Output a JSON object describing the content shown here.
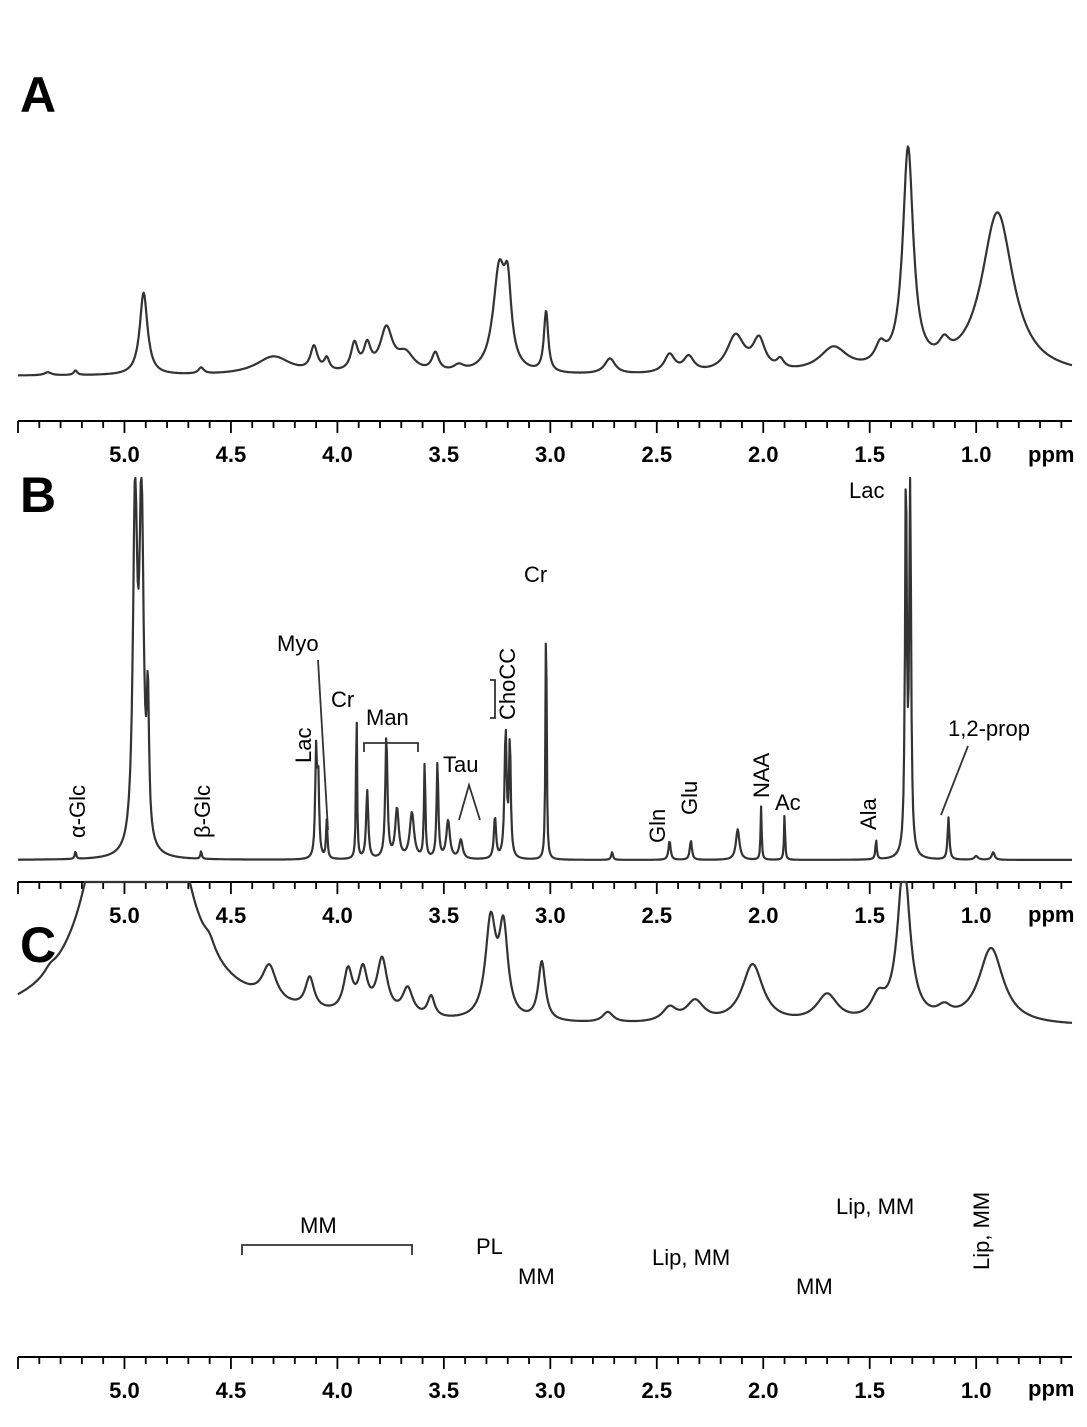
{
  "chart_data": [
    {
      "panel": "A",
      "type": "line",
      "xlabel": "ppm",
      "xlim": [
        5.5,
        0.55
      ],
      "x_reversed": true,
      "x_ticks": [
        "5.0",
        "4.5",
        "4.0",
        "3.5",
        "3.0",
        "2.5",
        "2.0",
        "1.5",
        "1.0"
      ],
      "x_tick_values": [
        5.0,
        4.5,
        4.0,
        3.5,
        3.0,
        2.5,
        2.0,
        1.5,
        1.0
      ],
      "ylim": [
        0,
        1
      ],
      "baseline": 0.03,
      "peaks": [
        {
          "x": 5.36,
          "h": 0.01,
          "w": 0.02
        },
        {
          "x": 5.23,
          "h": 0.015,
          "w": 0.01
        },
        {
          "x": 4.91,
          "h": 0.27,
          "w": 0.022
        },
        {
          "x": 4.64,
          "h": 0.02,
          "w": 0.015
        },
        {
          "x": 4.3,
          "h": 0.06,
          "w": 0.1
        },
        {
          "x": 4.11,
          "h": 0.08,
          "w": 0.02
        },
        {
          "x": 4.05,
          "h": 0.04,
          "w": 0.015
        },
        {
          "x": 3.92,
          "h": 0.09,
          "w": 0.02
        },
        {
          "x": 3.86,
          "h": 0.08,
          "w": 0.02
        },
        {
          "x": 3.77,
          "h": 0.14,
          "w": 0.035
        },
        {
          "x": 3.68,
          "h": 0.06,
          "w": 0.05
        },
        {
          "x": 3.54,
          "h": 0.06,
          "w": 0.02
        },
        {
          "x": 3.43,
          "h": 0.02,
          "w": 0.03
        },
        {
          "x": 3.24,
          "h": 0.33,
          "w": 0.035
        },
        {
          "x": 3.2,
          "h": 0.22,
          "w": 0.02
        },
        {
          "x": 3.02,
          "h": 0.2,
          "w": 0.012
        },
        {
          "x": 2.72,
          "h": 0.05,
          "w": 0.03
        },
        {
          "x": 2.44,
          "h": 0.06,
          "w": 0.03
        },
        {
          "x": 2.35,
          "h": 0.05,
          "w": 0.03
        },
        {
          "x": 2.13,
          "h": 0.12,
          "w": 0.05
        },
        {
          "x": 2.02,
          "h": 0.1,
          "w": 0.035
        },
        {
          "x": 1.92,
          "h": 0.03,
          "w": 0.02
        },
        {
          "x": 1.67,
          "h": 0.08,
          "w": 0.08
        },
        {
          "x": 1.45,
          "h": 0.06,
          "w": 0.03
        },
        {
          "x": 1.32,
          "h": 0.72,
          "w": 0.03
        },
        {
          "x": 1.15,
          "h": 0.05,
          "w": 0.03
        },
        {
          "x": 0.9,
          "h": 0.53,
          "w": 0.09
        }
      ],
      "annotations": []
    },
    {
      "panel": "B",
      "type": "line",
      "xlabel": "ppm",
      "xlim": [
        5.5,
        0.55
      ],
      "x_reversed": true,
      "x_ticks": [
        "5.0",
        "4.5",
        "4.0",
        "3.5",
        "3.0",
        "2.5",
        "2.0",
        "1.5",
        "1.0"
      ],
      "x_tick_values": [
        5.0,
        4.5,
        4.0,
        3.5,
        3.0,
        2.5,
        2.0,
        1.5,
        1.0
      ],
      "ylim": [
        0,
        1
      ],
      "baseline": 0.0,
      "peaks": [
        {
          "x": 5.23,
          "h": 0.02,
          "w": 0.004
        },
        {
          "x": 4.95,
          "h": 0.9,
          "w": 0.012
        },
        {
          "x": 4.92,
          "h": 0.9,
          "w": 0.012
        },
        {
          "x": 4.89,
          "h": 0.35,
          "w": 0.006
        },
        {
          "x": 4.64,
          "h": 0.02,
          "w": 0.004
        },
        {
          "x": 4.1,
          "h": 0.27,
          "w": 0.005
        },
        {
          "x": 4.09,
          "h": 0.2,
          "w": 0.005
        },
        {
          "x": 4.05,
          "h": 0.1,
          "w": 0.004
        },
        {
          "x": 3.91,
          "h": 0.4,
          "w": 0.003
        },
        {
          "x": 3.86,
          "h": 0.18,
          "w": 0.006
        },
        {
          "x": 3.77,
          "h": 0.32,
          "w": 0.006
        },
        {
          "x": 3.72,
          "h": 0.13,
          "w": 0.01
        },
        {
          "x": 3.65,
          "h": 0.12,
          "w": 0.012
        },
        {
          "x": 3.59,
          "h": 0.25,
          "w": 0.004
        },
        {
          "x": 3.53,
          "h": 0.25,
          "w": 0.005
        },
        {
          "x": 3.48,
          "h": 0.1,
          "w": 0.01
        },
        {
          "x": 3.42,
          "h": 0.05,
          "w": 0.01
        },
        {
          "x": 3.26,
          "h": 0.11,
          "w": 0.006
        },
        {
          "x": 3.21,
          "h": 0.33,
          "w": 0.006
        },
        {
          "x": 3.19,
          "h": 0.3,
          "w": 0.005
        },
        {
          "x": 3.02,
          "h": 0.7,
          "w": 0.003
        },
        {
          "x": 2.71,
          "h": 0.02,
          "w": 0.005
        },
        {
          "x": 2.44,
          "h": 0.05,
          "w": 0.006
        },
        {
          "x": 2.34,
          "h": 0.05,
          "w": 0.006
        },
        {
          "x": 2.12,
          "h": 0.08,
          "w": 0.01
        },
        {
          "x": 2.01,
          "h": 0.14,
          "w": 0.003
        },
        {
          "x": 1.9,
          "h": 0.12,
          "w": 0.003
        },
        {
          "x": 1.47,
          "h": 0.05,
          "w": 0.004
        },
        {
          "x": 1.33,
          "h": 0.99,
          "w": 0.005
        },
        {
          "x": 1.31,
          "h": 0.99,
          "w": 0.005
        },
        {
          "x": 1.13,
          "h": 0.11,
          "w": 0.005
        },
        {
          "x": 1.0,
          "h": 0.01,
          "w": 0.01
        },
        {
          "x": 0.92,
          "h": 0.02,
          "w": 0.008
        }
      ],
      "annotations": [
        {
          "text": "α-Glc",
          "x": 5.23,
          "rotated": true
        },
        {
          "text": "β-Glc",
          "x": 4.64,
          "rotated": true
        },
        {
          "text": "Lac",
          "x": 4.1,
          "rotated": true
        },
        {
          "text": "Myo",
          "x": 4.05
        },
        {
          "text": "Cr",
          "x": 3.92
        },
        {
          "text": "Man",
          "x": 3.72
        },
        {
          "text": "Tau",
          "x": 3.35
        },
        {
          "text": "ChoCC",
          "x": 3.2,
          "rotated": true
        },
        {
          "text": "Cr",
          "x": 3.02
        },
        {
          "text": "Gln",
          "x": 2.44,
          "rotated": true
        },
        {
          "text": "Glu",
          "x": 2.34,
          "rotated": true
        },
        {
          "text": "NAA",
          "x": 2.01,
          "rotated": true
        },
        {
          "text": "Ac",
          "x": 1.9
        },
        {
          "text": "Ala",
          "x": 1.47,
          "rotated": true
        },
        {
          "text": "Lac",
          "x": 1.32
        },
        {
          "text": "1,2-prop",
          "x": 1.13
        }
      ]
    },
    {
      "panel": "C",
      "type": "line",
      "xlabel": "ppm",
      "xlim": [
        5.5,
        0.55
      ],
      "x_reversed": true,
      "x_ticks": [
        "5.0",
        "4.5",
        "4.0",
        "3.5",
        "3.0",
        "2.5",
        "2.0",
        "1.5",
        "1.0"
      ],
      "x_tick_values": [
        5.0,
        4.5,
        4.0,
        3.5,
        3.0,
        2.5,
        2.0,
        1.5,
        1.0
      ],
      "ylim": [
        0,
        1
      ],
      "baseline": 0.01,
      "peaks": [
        {
          "x": 5.35,
          "h": 0.015,
          "w": 0.03
        },
        {
          "x": 4.94,
          "h": 2.5,
          "w": 0.11
        },
        {
          "x": 4.6,
          "h": 0.03,
          "w": 0.03
        },
        {
          "x": 4.32,
          "h": 0.1,
          "w": 0.04
        },
        {
          "x": 4.13,
          "h": 0.09,
          "w": 0.025
        },
        {
          "x": 3.95,
          "h": 0.12,
          "w": 0.025
        },
        {
          "x": 3.88,
          "h": 0.12,
          "w": 0.025
        },
        {
          "x": 3.79,
          "h": 0.16,
          "w": 0.03
        },
        {
          "x": 3.67,
          "h": 0.08,
          "w": 0.03
        },
        {
          "x": 3.56,
          "h": 0.06,
          "w": 0.02
        },
        {
          "x": 3.28,
          "h": 0.28,
          "w": 0.03
        },
        {
          "x": 3.22,
          "h": 0.25,
          "w": 0.025
        },
        {
          "x": 3.04,
          "h": 0.17,
          "w": 0.02
        },
        {
          "x": 2.73,
          "h": 0.03,
          "w": 0.03
        },
        {
          "x": 2.44,
          "h": 0.04,
          "w": 0.04
        },
        {
          "x": 2.32,
          "h": 0.06,
          "w": 0.05
        },
        {
          "x": 2.05,
          "h": 0.17,
          "w": 0.06
        },
        {
          "x": 1.7,
          "h": 0.08,
          "w": 0.06
        },
        {
          "x": 1.46,
          "h": 0.06,
          "w": 0.04
        },
        {
          "x": 1.34,
          "h": 0.46,
          "w": 0.035
        },
        {
          "x": 1.15,
          "h": 0.03,
          "w": 0.04
        },
        {
          "x": 0.93,
          "h": 0.22,
          "w": 0.07
        }
      ],
      "annotations": [
        {
          "text": "MM",
          "x": 4.05
        },
        {
          "text": "PL",
          "x": 3.24
        },
        {
          "text": "MM",
          "x": 3.04
        },
        {
          "text": "Lip, MM",
          "x": 2.05
        },
        {
          "text": "MM",
          "x": 1.7
        },
        {
          "text": "Lip, MM",
          "x": 1.34
        },
        {
          "text": "Lip, MM",
          "x": 0.93,
          "rotated": true
        }
      ]
    }
  ]
}
